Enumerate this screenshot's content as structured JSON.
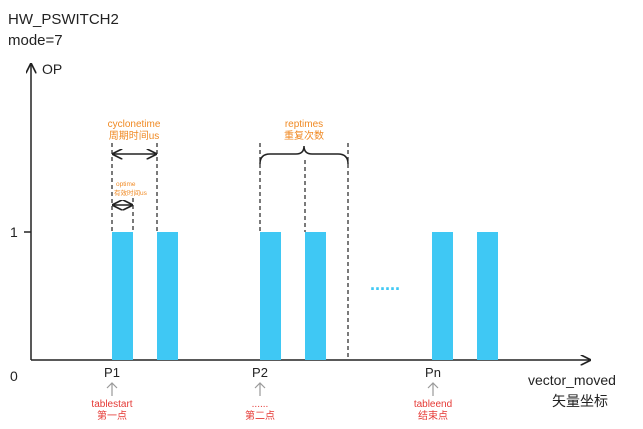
{
  "header": {
    "name": "HW_PSWITCH2",
    "mode": "mode=7"
  },
  "axes": {
    "y_label": "OP",
    "origin": "0",
    "level_one": "1",
    "x_label": "vector_moved",
    "x_label_cn": "矢量坐标"
  },
  "points": [
    {
      "label": "P1",
      "note": "tablestart",
      "note_cn": "第一点"
    },
    {
      "label": "P2",
      "note": "......",
      "note_cn": "第二点"
    },
    {
      "label": "Pn",
      "note": "tableend",
      "note_cn": "结束点"
    }
  ],
  "annotations": {
    "cyclonetime": "cyclonetime",
    "cyclonetime_cn": "周期时间us",
    "optime": "optime",
    "optime_cn": "有效时间us",
    "reptimes": "reptimes",
    "reptimes_cn": "重复次数",
    "ellipsis": "......"
  },
  "colors": {
    "pulse": "#3fc8f4",
    "axis": "#222222",
    "annotation": "#f08a24",
    "point_note": "#e53935",
    "pointer_arrow": "#9a9a9a"
  }
}
